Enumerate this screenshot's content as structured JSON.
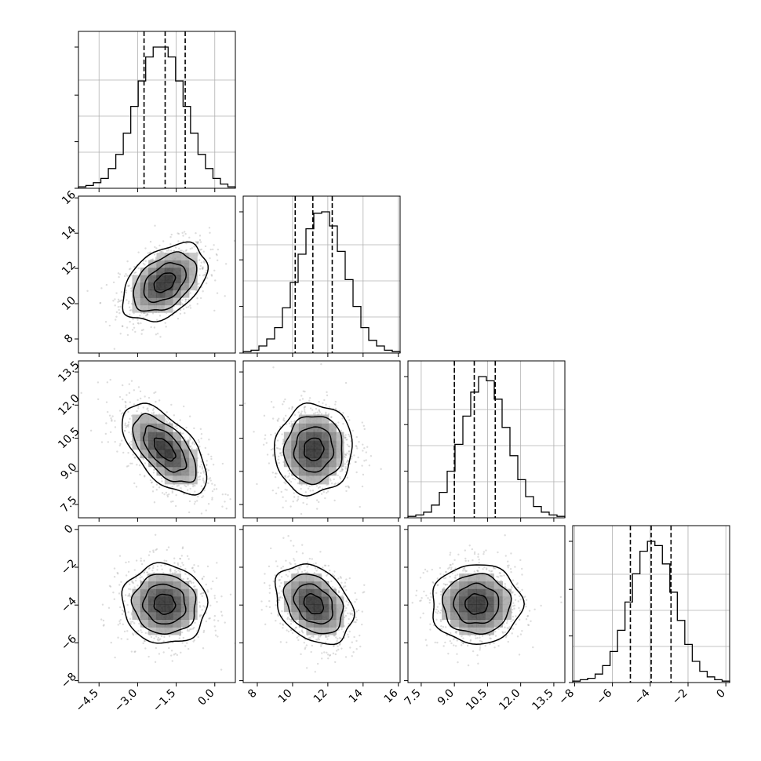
{
  "chart_data": {
    "type": "corner",
    "title": "",
    "grid": true,
    "parameters": [
      {
        "label": "",
        "range": [
          -5.3,
          0.8
        ],
        "quantiles": [
          -2.75,
          -1.93,
          -1.15
        ],
        "hist_ticks": [],
        "ticks": [
          -4.5,
          -3.0,
          -1.5,
          0.0
        ],
        "tick_labels": [
          "−4.5",
          "−3.0",
          "−1.5",
          "0.0"
        ]
      },
      {
        "label": "",
        "range": [
          7.2,
          16.1
        ],
        "quantiles": [
          10.15,
          11.15,
          12.25
        ],
        "ticks": [
          8,
          10,
          12,
          14,
          16
        ],
        "tick_labels": [
          "8",
          "10",
          "12",
          "14",
          "16"
        ]
      },
      {
        "label": "",
        "range": [
          6.9,
          14.0
        ],
        "quantiles": [
          9.0,
          9.9,
          10.85
        ],
        "ticks": [
          7.5,
          9.0,
          10.5,
          12.0,
          13.5
        ],
        "tick_labels": [
          "7.5",
          "9.0",
          "10.5",
          "12.0",
          "13.5"
        ]
      },
      {
        "label": "",
        "range": [
          -8.1,
          0.2
        ],
        "quantiles": [
          -5.05,
          -3.95,
          -2.9
        ],
        "ticks": [
          -8,
          -6,
          -4,
          -2,
          0
        ],
        "tick_labels": [
          "−8",
          "−6",
          "−4",
          "−2",
          "0"
        ]
      }
    ],
    "histograms": [
      {
        "bins": [
          -5.3,
          0.8
        ],
        "counts": [
          1,
          2,
          4,
          7,
          14,
          24,
          39,
          58,
          76,
          93,
          100,
          100,
          93,
          76,
          58,
          39,
          24,
          14,
          7,
          3,
          1
        ]
      },
      {
        "bins": [
          7.2,
          16.1
        ],
        "counts": [
          1,
          2,
          5,
          10,
          18,
          32,
          50,
          70,
          88,
          99,
          100,
          90,
          72,
          52,
          33,
          18,
          9,
          5,
          2,
          1
        ]
      },
      {
        "bins": [
          6.9,
          14.0
        ],
        "counts": [
          1,
          2,
          4,
          9,
          18,
          33,
          52,
          72,
          89,
          100,
          97,
          84,
          64,
          44,
          27,
          15,
          8,
          4,
          2,
          1
        ]
      },
      {
        "bins": [
          -8.1,
          0.2
        ],
        "counts": [
          1,
          2,
          3,
          6,
          12,
          22,
          37,
          57,
          77,
          93,
          100,
          97,
          84,
          64,
          44,
          27,
          15,
          8,
          4,
          2,
          1
        ]
      }
    ],
    "pairs": [
      {
        "x": 0,
        "y": 1,
        "center": [
          -1.95,
          11.2
        ],
        "sigma": [
          0.82,
          1.1
        ],
        "rho": 0.42
      },
      {
        "x": 0,
        "y": 2,
        "center": [
          -1.95,
          10.0
        ],
        "sigma": [
          0.82,
          1.02
        ],
        "rho": -0.6
      },
      {
        "x": 1,
        "y": 2,
        "center": [
          11.2,
          10.0
        ],
        "sigma": [
          1.1,
          1.02
        ],
        "rho": 0.05
      },
      {
        "x": 0,
        "y": 3,
        "center": [
          -1.95,
          -3.95
        ],
        "sigma": [
          0.82,
          1.05
        ],
        "rho": -0.05
      },
      {
        "x": 1,
        "y": 3,
        "center": [
          11.2,
          -3.95
        ],
        "sigma": [
          1.1,
          1.05
        ],
        "rho": -0.3
      },
      {
        "x": 2,
        "y": 3,
        "center": [
          10.0,
          -3.95
        ],
        "sigma": [
          1.02,
          1.05
        ],
        "rho": 0.0
      }
    ],
    "contour_levels_sigma": [
      0.5,
      1.0,
      1.5,
      2.0
    ],
    "colors": {
      "line": "#000000",
      "scatter": "#9e9e9e",
      "grid": "#b0b0b0",
      "frame": "#000000"
    }
  }
}
